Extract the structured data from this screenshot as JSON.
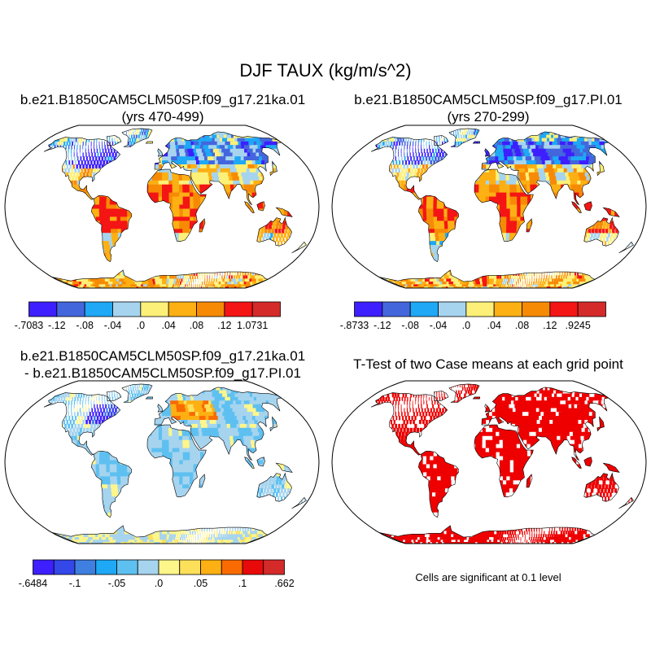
{
  "main_title": "DJF TAUX (kg/m/s^2)",
  "panels": {
    "p1": {
      "title_line1": "b.e21.B1850CAM5CLM50SP.f09_g17.21ka.01",
      "title_line2": "(yrs 470-499)"
    },
    "p2": {
      "title_line1": "b.e21.B1850CAM5CLM50SP.f09_g17.PI.01",
      "title_line2": "(yrs 270-299)"
    },
    "p3": {
      "title_line1": "b.e21.B1850CAM5CLM50SP.f09_g17.21ka.01",
      "title_line2": "- b.e21.B1850CAM5CLM50SP.f09_g17.PI.01"
    },
    "p4": {
      "title_line1": "T-Test of two Case means at each grid point",
      "note": "Cells are significant at 0.1 level"
    }
  },
  "colors": {
    "land_outline": "#000000",
    "significant": "#ee0000",
    "map_border": "#000000"
  },
  "chart_data": [
    {
      "type": "heatmap",
      "panel": "p1",
      "projection": "robinson",
      "colorbar": {
        "labels": [
          "-.7083",
          "-.12",
          "-.08",
          "-.04",
          ".0",
          ".04",
          ".08",
          ".12",
          "1.0731"
        ],
        "colors": [
          "#3d1fff",
          "#4466dd",
          "#1ea8f5",
          "#a6d4ef",
          "#fcf078",
          "#fdb013",
          "#f78a05",
          "#f41515",
          "#d42a2a"
        ],
        "min": -0.7083,
        "max": 1.0731
      }
    },
    {
      "type": "heatmap",
      "panel": "p2",
      "projection": "robinson",
      "colorbar": {
        "labels": [
          "-.8733",
          "-.12",
          "-.08",
          "-.04",
          ".0",
          ".04",
          ".08",
          ".12",
          ".9245"
        ],
        "colors": [
          "#3d1fff",
          "#4466dd",
          "#1ea8f5",
          "#a6d4ef",
          "#fcf078",
          "#fdb013",
          "#f78a05",
          "#f41515",
          "#d42a2a"
        ],
        "min": -0.8733,
        "max": 0.9245
      }
    },
    {
      "type": "heatmap",
      "panel": "p3",
      "projection": "robinson",
      "colorbar": {
        "labels": [
          "-.6484",
          "-.1",
          "-.05",
          ".0",
          ".05",
          ".1",
          ".662"
        ],
        "label_boundaries": [
          0,
          2,
          4,
          6,
          8,
          10,
          12
        ],
        "colors": [
          "#3d1fff",
          "#3447e8",
          "#3f7fe0",
          "#1ea8f5",
          "#5ec0f0",
          "#a6d4ef",
          "#fef68a",
          "#fde05a",
          "#fdb013",
          "#f96b00",
          "#e80a0a",
          "#d42a2a"
        ],
        "min": -0.6484,
        "max": 0.662
      }
    },
    {
      "type": "heatmap",
      "panel": "p4",
      "projection": "robinson",
      "significance_level": 0.1
    }
  ]
}
